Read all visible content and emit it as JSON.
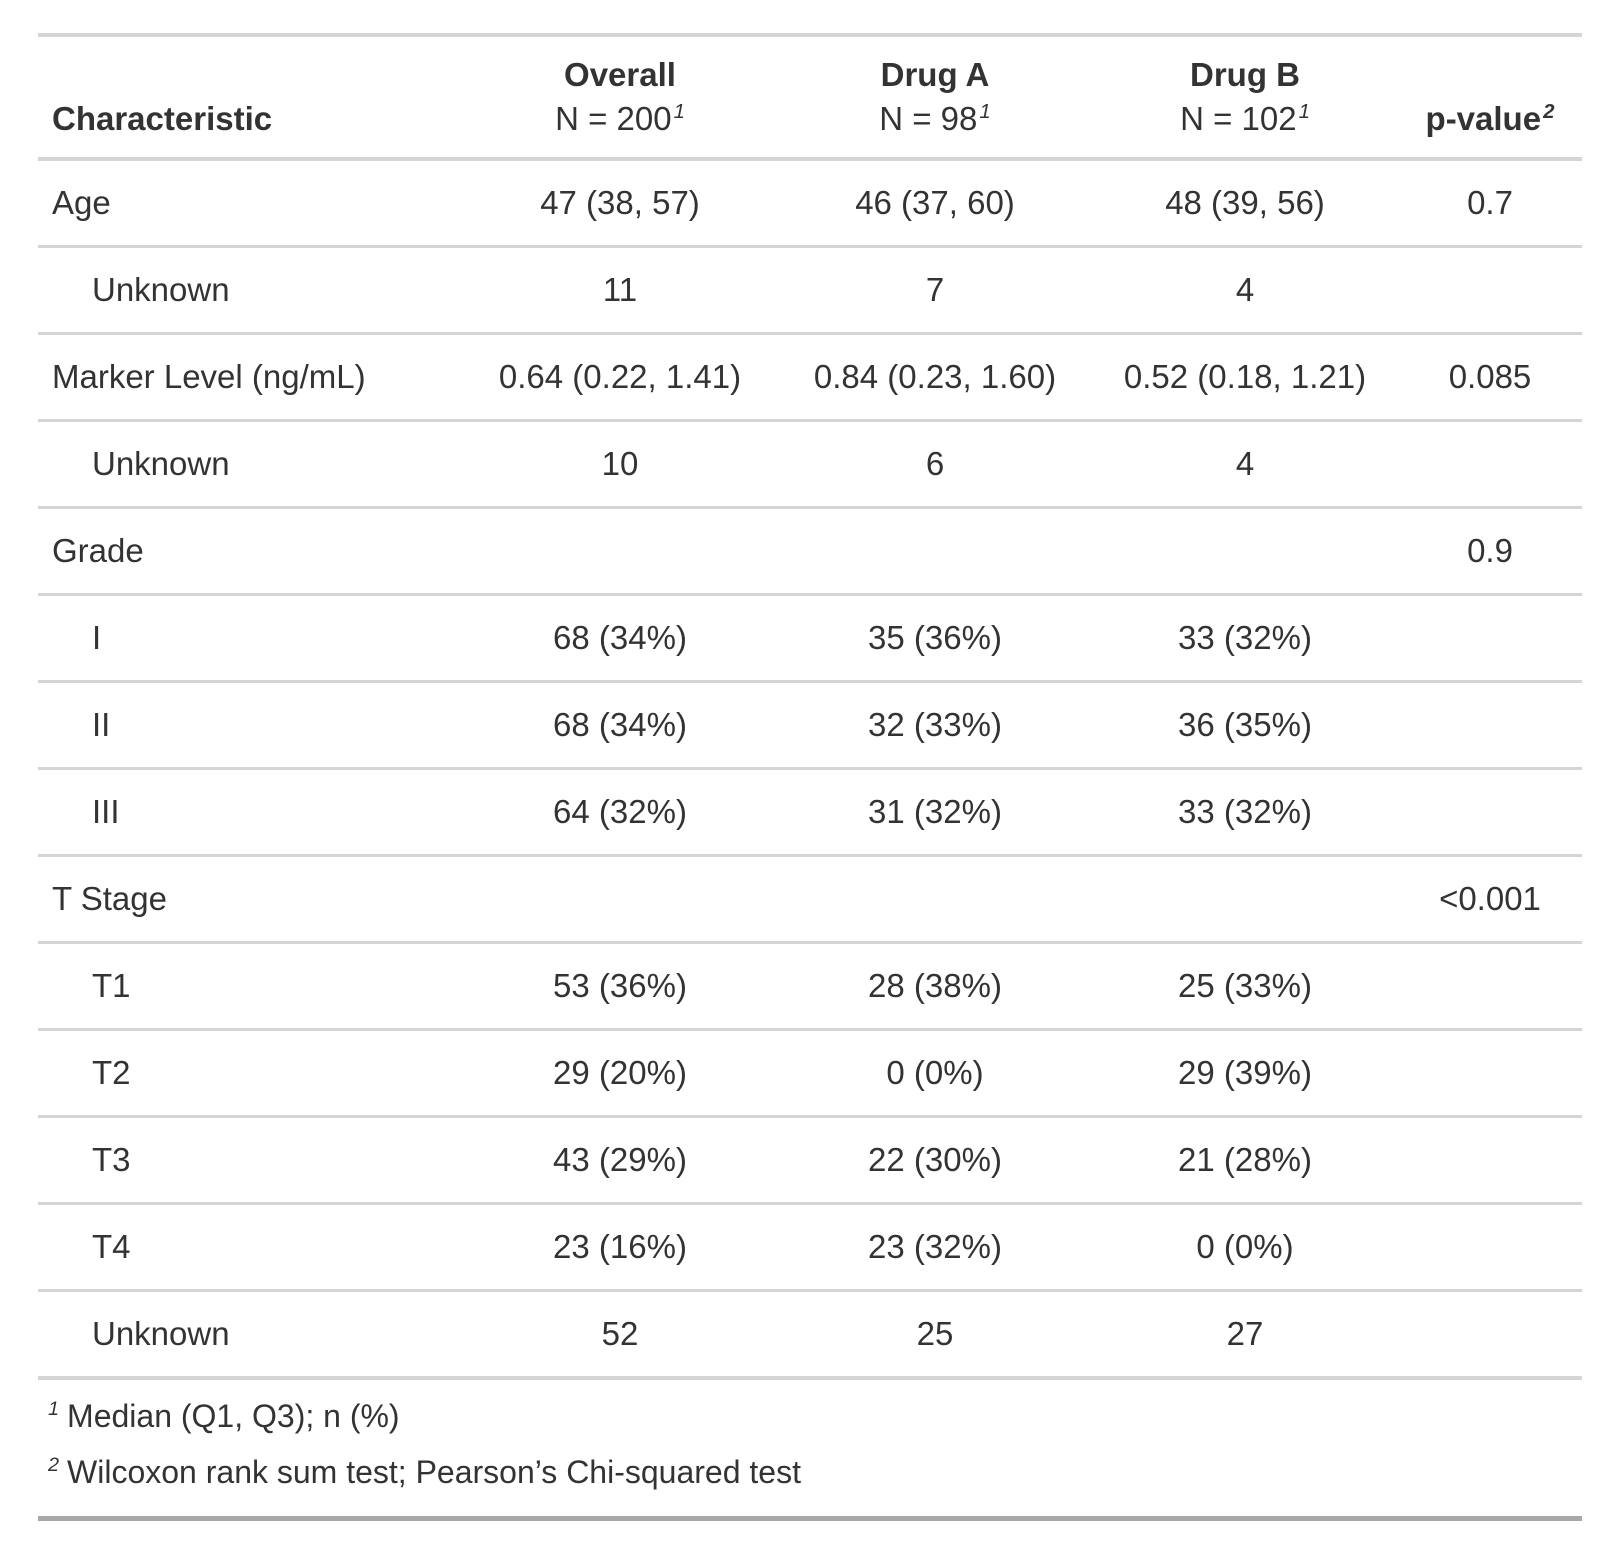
{
  "colors": {
    "text": "#333333",
    "border_light": "#D5D5D5",
    "border_dark": "#A8A8A8",
    "background": "#FFFFFF"
  },
  "table": {
    "columns": [
      {
        "header": "Characteristic",
        "subheader": "",
        "sup": ""
      },
      {
        "header": "Overall",
        "subheader": "N = 200",
        "sup": "1"
      },
      {
        "header": "Drug A",
        "subheader": "N = 98",
        "sup": "1"
      },
      {
        "header": "Drug B",
        "subheader": "N = 102",
        "sup": "1"
      },
      {
        "header": "p-value",
        "subheader": "",
        "sup": "2"
      }
    ],
    "rows": [
      {
        "label": "Age",
        "indent": false,
        "overall": "47 (38, 57)",
        "drug_a": "46 (37, 60)",
        "drug_b": "48 (39, 56)",
        "p": "0.7"
      },
      {
        "label": "Unknown",
        "indent": true,
        "overall": "11",
        "drug_a": "7",
        "drug_b": "4",
        "p": ""
      },
      {
        "label": "Marker Level (ng/mL)",
        "indent": false,
        "overall": "0.64 (0.22, 1.41)",
        "drug_a": "0.84 (0.23, 1.60)",
        "drug_b": "0.52 (0.18, 1.21)",
        "p": "0.085"
      },
      {
        "label": "Unknown",
        "indent": true,
        "overall": "10",
        "drug_a": "6",
        "drug_b": "4",
        "p": ""
      },
      {
        "label": "Grade",
        "indent": false,
        "overall": "",
        "drug_a": "",
        "drug_b": "",
        "p": "0.9"
      },
      {
        "label": "I",
        "indent": true,
        "overall": "68 (34%)",
        "drug_a": "35 (36%)",
        "drug_b": "33 (32%)",
        "p": ""
      },
      {
        "label": "II",
        "indent": true,
        "overall": "68 (34%)",
        "drug_a": "32 (33%)",
        "drug_b": "36 (35%)",
        "p": ""
      },
      {
        "label": "III",
        "indent": true,
        "overall": "64 (32%)",
        "drug_a": "31 (32%)",
        "drug_b": "33 (32%)",
        "p": ""
      },
      {
        "label": "T Stage",
        "indent": false,
        "overall": "",
        "drug_a": "",
        "drug_b": "",
        "p": "<0.001"
      },
      {
        "label": "T1",
        "indent": true,
        "overall": "53 (36%)",
        "drug_a": "28 (38%)",
        "drug_b": "25 (33%)",
        "p": ""
      },
      {
        "label": "T2",
        "indent": true,
        "overall": "29 (20%)",
        "drug_a": "0 (0%)",
        "drug_b": "29 (39%)",
        "p": ""
      },
      {
        "label": "T3",
        "indent": true,
        "overall": "43 (29%)",
        "drug_a": "22 (30%)",
        "drug_b": "21 (28%)",
        "p": ""
      },
      {
        "label": "T4",
        "indent": true,
        "overall": "23 (16%)",
        "drug_a": "23 (32%)",
        "drug_b": "0 (0%)",
        "p": ""
      },
      {
        "label": "Unknown",
        "indent": true,
        "overall": "52",
        "drug_a": "25",
        "drug_b": "27",
        "p": ""
      }
    ],
    "footnotes": [
      {
        "marker": "1",
        "text": "Median (Q1, Q3); n (%)"
      },
      {
        "marker": "2",
        "text": "Wilcoxon rank sum test; Pearson’s Chi-squared test"
      }
    ]
  },
  "chart_data": {
    "type": "table",
    "title": "",
    "column_headers": [
      "Characteristic",
      "Overall N = 200",
      "Drug A N = 98",
      "Drug B N = 102",
      "p-value"
    ],
    "rows": [
      [
        "Age",
        "47 (38, 57)",
        "46 (37, 60)",
        "48 (39, 56)",
        "0.7"
      ],
      [
        "Unknown",
        "11",
        "7",
        "4",
        ""
      ],
      [
        "Marker Level (ng/mL)",
        "0.64 (0.22, 1.41)",
        "0.84 (0.23, 1.60)",
        "0.52 (0.18, 1.21)",
        "0.085"
      ],
      [
        "Unknown",
        "10",
        "6",
        "4",
        ""
      ],
      [
        "Grade",
        "",
        "",
        "",
        "0.9"
      ],
      [
        "I",
        "68 (34%)",
        "35 (36%)",
        "33 (32%)",
        ""
      ],
      [
        "II",
        "68 (34%)",
        "32 (33%)",
        "36 (35%)",
        ""
      ],
      [
        "III",
        "64 (32%)",
        "31 (32%)",
        "33 (32%)",
        ""
      ],
      [
        "T Stage",
        "",
        "",
        "",
        "<0.001"
      ],
      [
        "T1",
        "53 (36%)",
        "28 (38%)",
        "25 (33%)",
        ""
      ],
      [
        "T2",
        "29 (20%)",
        "0 (0%)",
        "29 (39%)",
        ""
      ],
      [
        "T3",
        "43 (29%)",
        "22 (30%)",
        "21 (28%)",
        ""
      ],
      [
        "T4",
        "23 (16%)",
        "23 (32%)",
        "0 (0%)",
        ""
      ],
      [
        "Unknown",
        "52",
        "25",
        "27",
        ""
      ]
    ],
    "footnotes": [
      "1 Median (Q1, Q3); n (%)",
      "2 Wilcoxon rank sum test; Pearson’s Chi-squared test"
    ]
  }
}
